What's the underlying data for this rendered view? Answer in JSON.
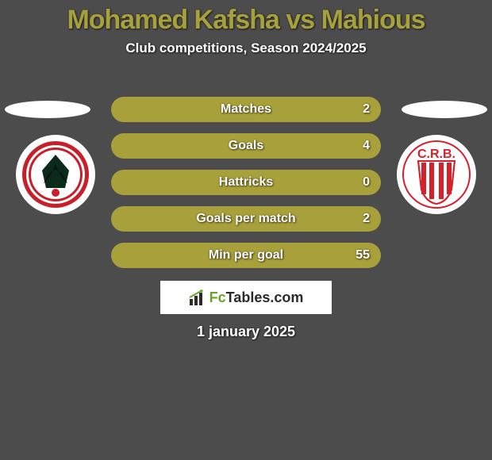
{
  "title": {
    "text": "Mohamed Kafsha vs Mahious",
    "color": "#a8a03a",
    "fontsize": 34
  },
  "subtitle": {
    "text": "Club competitions, Season 2024/2025",
    "fontsize": 17
  },
  "pills": {
    "bg_color": "#a8a03a",
    "label_fontsize": 16,
    "value_fontsize": 16,
    "items": [
      {
        "label": "Matches",
        "value": "2"
      },
      {
        "label": "Goals",
        "value": "4"
      },
      {
        "label": "Hattricks",
        "value": "0"
      },
      {
        "label": "Goals per match",
        "value": "2"
      },
      {
        "label": "Min per goal",
        "value": "55"
      }
    ]
  },
  "left_club": {
    "badge_bg": "#ffffff",
    "primary": "#c8202a",
    "secondary": "#0a2a1a"
  },
  "right_club": {
    "badge_bg": "#ffffff",
    "primary": "#d8202a",
    "stripe": "#ffffff",
    "text": "C.R.B."
  },
  "footer": {
    "brand_prefix": "Fc",
    "brand_main": "Tables",
    "brand_suffix": ".com",
    "accent": "#6aa329",
    "text_color": "#2a2a2a",
    "fontsize": 18
  },
  "date": {
    "text": "1 january 2025",
    "fontsize": 18
  }
}
